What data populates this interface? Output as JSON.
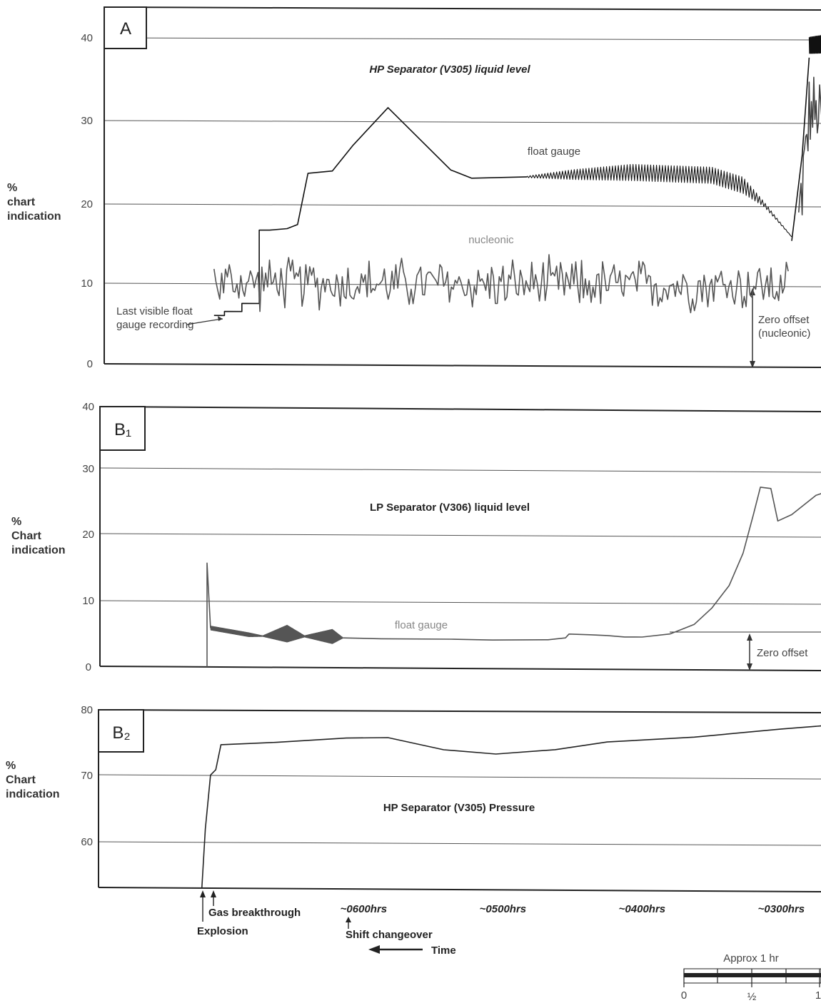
{
  "chart_data": [
    {
      "type": "line",
      "panel_label": "A",
      "title": "HP Separator (V305) liquid level",
      "ylabel": "% chart indication",
      "ylim": [
        0,
        40
      ],
      "yticks": [
        "0",
        "10",
        "20",
        "30",
        "40"
      ],
      "grid": true,
      "series": [
        {
          "name": "float gauge",
          "color": "#111111",
          "style": "line",
          "noise": 0,
          "ptsPerSeg": 2,
          "points": [
            [
              7.2,
              6
            ],
            [
              7.5,
              6
            ],
            [
              7.5,
              6.5
            ],
            [
              8.0,
              6.5
            ],
            [
              8.0,
              7.5
            ],
            [
              8.5,
              7.5
            ],
            [
              8.5,
              16.5
            ],
            [
              8.8,
              16.5
            ],
            [
              9.3,
              16.7
            ],
            [
              9.6,
              17.2
            ],
            [
              9.9,
              23.5
            ],
            [
              10.6,
              23.8
            ],
            [
              11.2,
              27
            ],
            [
              12.2,
              31.6
            ],
            [
              14.0,
              24
            ],
            [
              14.6,
              23
            ],
            [
              16.2,
              23.2
            ]
          ]
        },
        {
          "name": "float gauge",
          "color": "#111111",
          "style": "osc",
          "ptsPerSeg": 30,
          "points": [
            [
              16.2,
              23.2,
              0.1
            ],
            [
              17.5,
              23.5,
              0.6
            ],
            [
              19.2,
              23.8,
              1
            ],
            [
              21.5,
              23.5,
              1
            ],
            [
              22.4,
              22.3,
              1
            ],
            [
              23.0,
              20,
              0.3
            ],
            [
              23.8,
              16,
              0
            ]
          ]
        },
        {
          "name": "float gauge",
          "color": "#111111",
          "style": "line",
          "noise": 0,
          "ptsPerSeg": 2,
          "points": [
            [
              23.8,
              15.5
            ],
            [
              24.1,
              26
            ],
            [
              24.3,
              38
            ]
          ]
        },
        {
          "name": "float gauge",
          "color": "#111111",
          "style": "osc",
          "ptsPerSeg": 80,
          "points": [
            [
              24.3,
              39.5,
              1
            ],
            [
              25.5,
              40,
              1.3
            ],
            [
              26.5,
              40.5,
              1.4
            ],
            [
              27.5,
              39.7,
              1.4
            ],
            [
              28.0,
              37,
              1
            ]
          ]
        },
        {
          "name": "",
          "color": "#444444",
          "style": "noise",
          "noise": 5,
          "ptsPerSeg": 24,
          "points": [
            [
              24.0,
              18
            ],
            [
              24.3,
              31
            ],
            [
              26.5,
              31
            ],
            [
              27.0,
              31
            ],
            [
              27.5,
              28
            ],
            [
              28.0,
              26
            ]
          ]
        },
        {
          "name": "nucleonic",
          "color": "#555555",
          "style": "noise",
          "noise": 3.2,
          "ptsPerSeg": 150,
          "points": [
            [
              7.2,
              10
            ],
            [
              15.0,
              10
            ],
            [
              23.7,
              10
            ]
          ]
        }
      ]
    },
    {
      "type": "line",
      "panel_label": "B₁",
      "title": "LP Separator (V306) liquid level",
      "ylabel": "% Chart indication",
      "ylim": [
        0,
        40
      ],
      "yticks": [
        "0",
        "10",
        "20",
        "30",
        "40"
      ],
      "grid": true,
      "series": [
        {
          "name": "float gauge",
          "color": "#555555",
          "style": "line",
          "noise": 0,
          "ptsPerSeg": 2,
          "points": [
            [
              7.0,
              0
            ],
            [
              7.0,
              16
            ],
            [
              7.1,
              6
            ]
          ]
        },
        {
          "name": "float gauge",
          "color": "#555555",
          "style": "osc",
          "ptsPerSeg": 80,
          "points": [
            [
              7.1,
              6,
              0.3
            ],
            [
              8.2,
              5,
              0.3
            ],
            [
              8.6,
              4.8,
              0.05
            ],
            [
              9.3,
              5.2,
              1.3
            ],
            [
              9.8,
              4.8,
              0.1
            ],
            [
              10.6,
              4.8,
              1.1
            ],
            [
              10.9,
              4.6,
              0.05
            ]
          ]
        },
        {
          "name": "float gauge",
          "color": "#555555",
          "style": "line",
          "noise": 0,
          "ptsPerSeg": 2,
          "points": [
            [
              10.9,
              4.6
            ],
            [
              12.0,
              4.5
            ],
            [
              14.0,
              4.5
            ],
            [
              15.2,
              4.4
            ],
            [
              16.8,
              4.5
            ],
            [
              17.3,
              4.8
            ],
            [
              17.4,
              5.4
            ],
            [
              18.0,
              5.3
            ],
            [
              18.5,
              5.2
            ],
            [
              19.0,
              5.0
            ],
            [
              19.5,
              5.0
            ],
            [
              20.3,
              5.5
            ],
            [
              21.0,
              7.0
            ],
            [
              21.5,
              9.5
            ],
            [
              22.0,
              13
            ],
            [
              22.4,
              18
            ],
            [
              22.7,
              24
            ],
            [
              22.9,
              28.2
            ],
            [
              23.2,
              28
            ],
            [
              23.4,
              23
            ],
            [
              23.8,
              24
            ],
            [
              24.5,
              27
            ],
            [
              25.5,
              28.8
            ],
            [
              26.2,
              29.5
            ],
            [
              26.7,
              29.0
            ],
            [
              27.0,
              28.0
            ],
            [
              27.2,
              27.2
            ],
            [
              27.5,
              29
            ],
            [
              27.7,
              32
            ],
            [
              27.9,
              35
            ],
            [
              28.05,
              31
            ],
            [
              28.1,
              24
            ],
            [
              28.2,
              23
            ],
            [
              28.3,
              22
            ]
          ]
        }
      ]
    },
    {
      "type": "line",
      "panel_label": "B₂",
      "title": "HP Separator (V305) Pressure",
      "ylabel": "% Chart indication",
      "ylim": [
        53,
        80
      ],
      "yticks": [
        "60",
        "70",
        "80"
      ],
      "grid": true,
      "series": [
        {
          "name": "",
          "color": "#222222",
          "style": "line",
          "noise": 0,
          "ptsPerSeg": 2,
          "points": [
            [
              6.85,
              53
            ],
            [
              6.95,
              62
            ],
            [
              7.1,
              70.2
            ],
            [
              7.25,
              71
            ],
            [
              7.4,
              74.8
            ],
            [
              9.0,
              75.2
            ],
            [
              11.0,
              75.9
            ],
            [
              12.2,
              76
            ],
            [
              13.8,
              74.2
            ],
            [
              15.3,
              73.6
            ],
            [
              17.0,
              74.3
            ],
            [
              18.5,
              75.5
            ],
            [
              21.0,
              76.3
            ],
            [
              23.5,
              77.6
            ],
            [
              25.8,
              78.6
            ],
            [
              27.0,
              78.9
            ],
            [
              28.4,
              77.6
            ]
          ]
        }
      ]
    }
  ],
  "annotations": {
    "last_visible": [
      "Last visible float",
      "gauge recording"
    ],
    "zero_offset_nucleonic": [
      "Zero offset",
      "(nucleonic)"
    ],
    "zero_offset": "Zero offset",
    "float_gauge_A": "float gauge",
    "nucleonic": "nucleonic",
    "float_gauge_B1": "float gauge"
  },
  "time_axis": {
    "labels": [
      {
        "text": "~0600hrs",
        "x": 11.5
      },
      {
        "text": "~0500hrs",
        "x": 15.5
      },
      {
        "text": "~0400hrs",
        "x": 19.5
      },
      {
        "text": "~0300hrs",
        "x": 23.5
      }
    ],
    "gas_breakthrough": "Gas breakthrough",
    "explosion": "Explosion",
    "shift_changeover": "Shift changeover",
    "time_label": "Time"
  },
  "scale_bar": {
    "title": "Approx 1 hr",
    "ticks": [
      "0",
      "½",
      "1"
    ]
  },
  "colors": {
    "ink": "#222222",
    "grey": "#888888",
    "grid": "#555555"
  }
}
